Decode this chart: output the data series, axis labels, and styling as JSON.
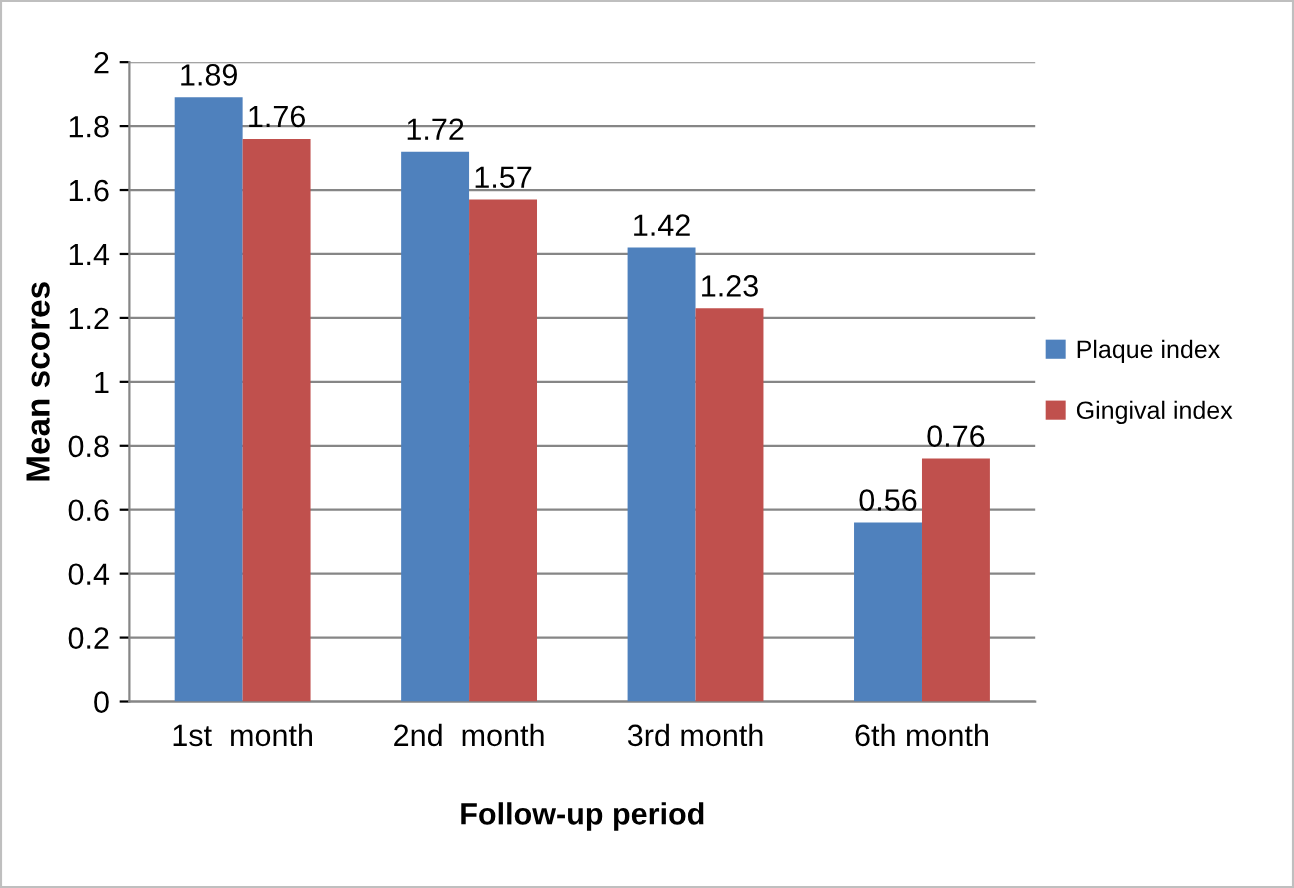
{
  "chart_data": {
    "type": "bar",
    "xlabel": "Follow-up period",
    "ylabel": "Mean scores",
    "categories": [
      "1st  month",
      "2nd  month",
      "3rd month",
      "6th month"
    ],
    "series": [
      {
        "name": "Plaque index",
        "color": "#4f81bd",
        "values": [
          1.89,
          1.72,
          1.42,
          0.56
        ]
      },
      {
        "name": "Gingival index",
        "color": "#c0504d",
        "values": [
          1.76,
          1.57,
          1.23,
          0.76
        ]
      }
    ],
    "ylim": [
      0,
      2
    ],
    "yticks": [
      0,
      0.2,
      0.4,
      0.6,
      0.8,
      1,
      1.2,
      1.4,
      1.6,
      1.8,
      2
    ],
    "grid": "y",
    "legend": "right",
    "data_labels": true
  }
}
